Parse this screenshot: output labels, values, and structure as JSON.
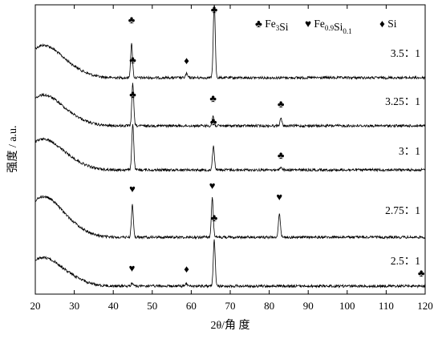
{
  "chart_data": {
    "type": "line",
    "title": "",
    "xlabel": "2θ/角 度",
    "ylabel": "强度 / a.u.",
    "xlim": [
      20,
      120
    ],
    "x_ticks": [
      20,
      30,
      40,
      50,
      60,
      70,
      80,
      90,
      100,
      110,
      120
    ],
    "y_ticks_shown": false,
    "grid": false,
    "legend_position": "top-right",
    "legend": [
      {
        "symbol": "club",
        "glyph": "♣",
        "formula": "Fe",
        "sub": "3",
        "rest": "Si",
        "rest_sub": "",
        "rest2": ""
      },
      {
        "symbol": "heart",
        "glyph": "♥",
        "formula": "Fe",
        "sub": "0.9",
        "rest": "Si",
        "rest_sub": "0.1",
        "rest2": ""
      },
      {
        "symbol": "diamond",
        "glyph": "♦",
        "formula": "Si",
        "sub": "",
        "rest": "",
        "rest_sub": "",
        "rest2": ""
      }
    ],
    "series": [
      {
        "name": "3.5：1",
        "peaks": [
          {
            "x": 44.7,
            "phase": "club"
          },
          {
            "x": 58.8,
            "phase": "diamond"
          },
          {
            "x": 65.9,
            "phase": "club"
          }
        ]
      },
      {
        "name": "3.25：1",
        "peaks": [
          {
            "x": 45.0,
            "phase": "club"
          },
          {
            "x": 65.6,
            "phase": "club"
          },
          {
            "x": 83.0,
            "phase": "club"
          }
        ]
      },
      {
        "name": "3：1",
        "peaks": [
          {
            "x": 45.0,
            "phase": "club"
          },
          {
            "x": 65.7,
            "phase": "club"
          },
          {
            "x": 83.0,
            "phase": "club"
          }
        ]
      },
      {
        "name": "2.75：1",
        "peaks": [
          {
            "x": 44.9,
            "phase": "heart"
          },
          {
            "x": 65.4,
            "phase": "heart"
          },
          {
            "x": 82.6,
            "phase": "heart"
          }
        ]
      },
      {
        "name": "2.5：1",
        "peaks": [
          {
            "x": 44.8,
            "phase": "heart"
          },
          {
            "x": 58.8,
            "phase": "diamond"
          },
          {
            "x": 65.9,
            "phase": "club"
          },
          {
            "x": 119.0,
            "phase": "club"
          }
        ]
      }
    ]
  }
}
